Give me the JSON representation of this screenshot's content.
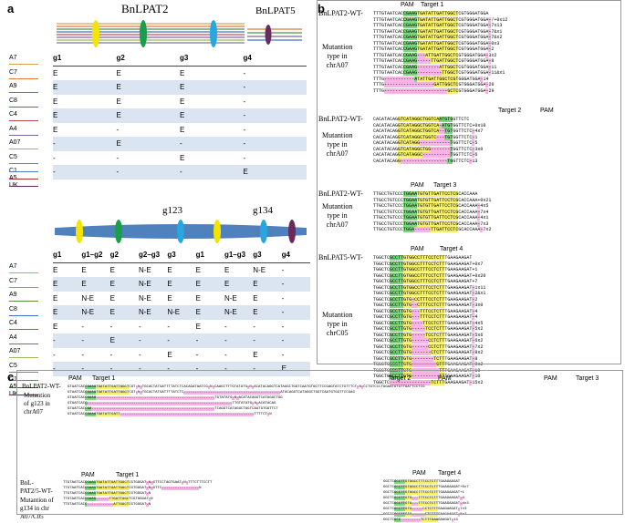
{
  "panels": {
    "a": "a",
    "b": "b",
    "c": "c"
  },
  "panel_a": {
    "gene1": "BnLPAT2",
    "gene2": "BnLPAT5",
    "table1": {
      "headers": [
        "g1",
        "g2",
        "g3",
        "g4"
      ],
      "rows": [
        {
          "label": "A7",
          "cells": [
            "E",
            "E",
            "E",
            "-"
          ]
        },
        {
          "label": "C7",
          "cells": [
            "E",
            "E",
            "E",
            "-"
          ]
        },
        {
          "label": "A9",
          "cells": [
            "E",
            "E",
            "E",
            "-"
          ]
        },
        {
          "label": "C8",
          "cells": [
            "E",
            "E",
            "E",
            "-"
          ]
        },
        {
          "label": "C4",
          "cells": [
            "E",
            "-",
            "E",
            "-"
          ]
        },
        {
          "label": "A4",
          "cells": [
            "-",
            "E",
            "-",
            "-"
          ]
        },
        {
          "label": "A07",
          "cells": [
            "-",
            "-",
            "E",
            "-"
          ]
        },
        {
          "label": "C5",
          "cells": [
            "-",
            "-",
            "-",
            "E"
          ]
        }
      ],
      "extra_labels": [
        "C1",
        "A5",
        "UK"
      ]
    },
    "fusion_labels": [
      "g123",
      "g134"
    ],
    "table2": {
      "headers": [
        "g1",
        "g1–g2",
        "g2",
        "g2–g3",
        "g3",
        "g1",
        "g1–g3",
        "g3",
        "g4"
      ],
      "rows": [
        {
          "label": "A7",
          "cells": [
            "E",
            "E",
            "E",
            "N-E",
            "E",
            "E",
            "E",
            "N-E",
            "-"
          ]
        },
        {
          "label": "C7",
          "cells": [
            "E",
            "E",
            "E",
            "N-E",
            "E",
            "E",
            "E",
            "E",
            "-"
          ]
        },
        {
          "label": "A9",
          "cells": [
            "E",
            "N-E",
            "E",
            "N-E",
            "E",
            "E",
            "N-E",
            "E",
            "-"
          ]
        },
        {
          "label": "C8",
          "cells": [
            "E",
            "N-E",
            "E",
            "N-E",
            "N-E",
            "E",
            "N-E",
            "E",
            "-"
          ]
        },
        {
          "label": "C4",
          "cells": [
            "E",
            "-",
            "-",
            "-",
            "-",
            "E",
            "-",
            "-",
            "-"
          ]
        },
        {
          "label": "A4",
          "cells": [
            "-",
            "-",
            "E",
            "-",
            "-",
            "-",
            "-",
            "-",
            "-"
          ]
        },
        {
          "label": "A07",
          "cells": [
            "-",
            "-",
            "-",
            "-",
            "E",
            "-",
            "-",
            "E",
            "-"
          ]
        },
        {
          "label": "C5",
          "cells": [
            "-",
            "-",
            "-",
            "-",
            "-",
            "-",
            "-",
            "-",
            "E"
          ]
        }
      ],
      "extra_labels": [
        "C1",
        "A5",
        "UK"
      ]
    }
  },
  "panel_b": {
    "blocks": [
      {
        "wt": "BnLPAT2-WT-",
        "pam": "PAM",
        "target": "Target 1",
        "side": [
          "Mutantion",
          "type in",
          "chrA07"
        ],
        "seqs": [
          "TTTGTAATCACCGAAGTGATATTGATTGGCTCGTGGGATGGA",
          "TTTGTAATCACCGAAGTGATATTGATTGGCTCGTGGGATGGA-/+0x12",
          "TTTGTAATCACCGAAGTGATATTGATTGGCTCGTGGGATGGA-7x13",
          "TTTGTAATCACCGAAGTGATATTGATTGGCTCGTGGGATGGA-7&x1",
          "TTTGTAATCACCGAAGTGATATTGATTGGCTCGTGGGATGGA-7&x2",
          "TTTGTAATCACCGAAGTGATATTGATTGGCTCGTGGGATGGA-0x3",
          "TTTGTAATCACCGAAGTGATATTGATTGGCTCGTGGGATGGA-2",
          "TTTGTAATCACCGAAG---ATTGATTGGCTCGTGGGATGGA-3x2",
          "TTTGTAATCACCGAAG-----TTGATTGGCTCGTGGGATGGA-8",
          "TTTGTAATCACCGAAG--------ATTGGCTCGTGGGATGGA-11",
          "TTTGTAATCACCGAAG---------TTGGCTCGTGGGATGGA-11&x1",
          "TTTG-----------ATATTGATTGGCTCGTGGGATGGA-14",
          "TTTG------------------GATTGGCTCGTGGGATGGA-20",
          "TTTG-----------------------GCTCGTGGGATGGA-29"
        ]
      },
      {
        "wt": "BnLPAT2-WT-",
        "pam": "PAM",
        "target": "Target 2",
        "side": [
          "Mutantion",
          "type in",
          "chrA07"
        ],
        "seqs": [
          "CACATACAGGTCATAGGCTGGTCAATGTGGTTCTC",
          "CACATACAGGTCATAGGCTGGTCA-ATGTGGTTCTC+0x10",
          "CACATACAGGTCATAGGCTGGTCA--TGTGGTTCTC-4x7",
          "CACATACAGGTCATAGGCTGGTC---TGTGGTTCTC-1",
          "CACATACAGGTCATAGG-----------TGGTTCTC-5",
          "CACATACAGGTCATAGGCTGG-------TGGTTCTC-3x0",
          "CACATACAGGTCATAGGC----------TGGTTCTC-6",
          "CACATACAGG-----------------TGGTTCTC-13"
        ]
      },
      {
        "wt": "BnLPAT2-WT-",
        "pam": "PAM",
        "target": "Target 3",
        "side": [
          "Mutantion",
          "type in",
          "chrA07"
        ],
        "seqs": [
          "TTGCCTGTCCCTGGAATGTGTTGATTCCTCGCACCAAA",
          "TTGCCTGTCCCTGGAATGTGTTGATTCCTCGCACCAAA+0x21",
          "TTGCCTGTCCCTGGAATGTGTTGATTCCTCGCACCAAA-4x5",
          "TTGCCTGTCCCTGGAATGTGTTGATTCCTCGCACCAAA-7x4",
          "TTGCCTGTCCCTGGAATGTGTTGATTCCTCGCACCAAA-4x1",
          "TTGCCTGTCCCTGGAATGTGTTGATTCCTCGCACCAAA-7x3",
          "TTGCCTGTCCCTGGA------TTGATTCCTCGCACCAAA-7x2"
        ]
      },
      {
        "wt": "BnLPAT5-WT-",
        "pam": "PAM",
        "target": "Target 4",
        "side": [
          "Mutantion",
          "type in",
          "chrC05"
        ],
        "seqs": [
          "TGGCTCGCCTTGTGGCCTTTCCTCTTTGAAGAAGAT",
          "TGGCTCGCCTTGTGGCCTTTCCTCTTTGAAGAAGAT+0x7",
          "TGGCTCGCCTTGTGGCCTTTCCTCTTTGAAGAAGAT+1",
          "TGGCTCGCCTTGTGGCCTTTCCTCTTTGAAGAAGAT+0x20",
          "TGGCTCGCCTTGTGGCCTTTCCTCTTTGAAGAAGAT+7",
          "TGGCTCGCCTTGTGGCCTTTCCTCTTTGAAGAAGAT-1x11",
          "TGGCTCGCCTTGTGGCCTTTCCTCTTTGAAGAAGAT-2&x1",
          "TGGCTCGCCTTGTG-CCTTTCCTCTTTGAAGAAGAT-2",
          "TGGCTCGCCTTGTG--CTTTCCTCTTTGAAGAAGAT-3x0",
          "TGGCTCGCCTTGTG---TTTCCTCTTTGAAGAAGAT-4",
          "TGGCTCGCCTTGTG---TTTCCTCTTTGAAGAAGAT-4",
          "TGGCTCGCCTTGTG----TTCCTCTTTGAAGAAGAT-4x5",
          "TGGCTCGCCTTGTG-----TCCTCTTTGAAGAAGAT-5x2",
          "TGGCTCGCCTTGTG-----TCCTCTTTGAAGAAGAT-5x6",
          "TGGCTCGCCTTGTG------CCTCTTTGAAGAAGAT-6x2",
          "TGGCTCGCCTTGTG------CCTCTTTGAAGAAGAT-7x2",
          "TGGCTCGCCTTGTG-------CTCTTTGAAGAAGAT-8x2",
          "TGGCTCGCCTTGTG--------TCTTTGAAGAAGAT-8",
          "TGGCTCGCCTTGTG---------CTTTGAAGAAGAT-9x2",
          "TGGCTCGCCTTGTG----------TTTGAAGAAGAT-10",
          "TGGCTCGCCTTGTG----------TTTGAAGAAGAT-10",
          "TGGCTC---------------TCTTTGAAGAAGAT-15x2"
        ]
      }
    ]
  },
  "panel_c": {
    "block1": {
      "wt": "BnLPAT2-WT-",
      "side": [
        "Mutantion",
        "of g123 in",
        "chrA07"
      ],
      "pam": "PAM",
      "targets": [
        "Target 1",
        "Target 2",
        "Target 3"
      ],
      "seqs": [
        "GTAATCACCGAAGTGATATTGATTGGCTCGT-N-TGCACTATGATTTTATCTCACAGATAATCG-N-CAAGCTTTGTATATG-N-ACATACAGGTCATAGGCTGGTCAATGTGGTTCCGAGTATCTGTTTCT-N-CCTGTCCCTGGAATGTGTTGATTCCTCG",
        "GTAATCACCGAAGTGATATTGATTGGCTCGT-N-TGCACTATGATTTTATCTC--------------------------------------------ATACAGGTCATAGGCTGGTCAATGTGGTTCCGAG",
        "GTAATCACCGAAG------------------------------------------------------TGTATATG-N-ACATACAGGTCATAGGCTGG",
        "GTAATCACC------------------------------------------------------------------TTGTATATG-N-ACATACAG",
        "GTAATCACCGA--------------------------------------------------------TCAGGTCATAGGCTGGTCAATGTGGTTCT",
        "GTAATCACCGAAGTGATATTGATT-------------------------------------------------------------TTTTCT-N"
      ]
    },
    "block2": {
      "wt": [
        "BnL-",
        "PAT2/5-WT-"
      ],
      "side": [
        "Mutantion of",
        "g134 in chr",
        "A07/C05"
      ],
      "pam": "PAM",
      "target": "Target 1",
      "seqs": [
        "TTGTAATCACCGAAGTGATATTGATTGGCTCGTGGGAT-N-GTTCCTAGTGAAT-N-TTTCTTTCCTT",
        "TTGTAATCACCGAAGTGATATTGATTGGCTCGTGGGAT-N-GTTC-----------------N",
        "TTGTAATCACCGAAGTGATATTGATTGGCTCGTGGGAT-N",
        "TTGTAATCACCGAAG------TTGATTGGCTCGTGGGAT-N",
        "TTGTAATCACC------------ATTGGCTCGTGGGAT-N"
      ]
    },
    "block3": {
      "pam": "PAM",
      "target": "Target 4",
      "seqs": [
        "GGCTCGCCTTGTGGCCTTTCCTCTTTGAAGAAGAT",
        "GGCTCGCCTTGTGGCCTTTCCTCTTTGAAGAAGAT+0x7",
        "GGCTCGCCTTGTGGCCTTTCCTCTTTGAAGAAGAT+1",
        "GGCTCGCCTTGTG---TTTCCTCTTTGAAGAAGAT-4",
        "GGCTCGCCTTGTG---TTTCCTCTTTGAAGAAGAT-4x3",
        "GGCTCGCCTTGTG-----CCTCTTTGAAGAAGAT-7x3",
        "GGCTCGCCTTGTG------CTCTTTGAAGAAGAT-8x2",
        "GGCTCGCC---------TCTTTGAAGAAGAT-14"
      ]
    }
  }
}
